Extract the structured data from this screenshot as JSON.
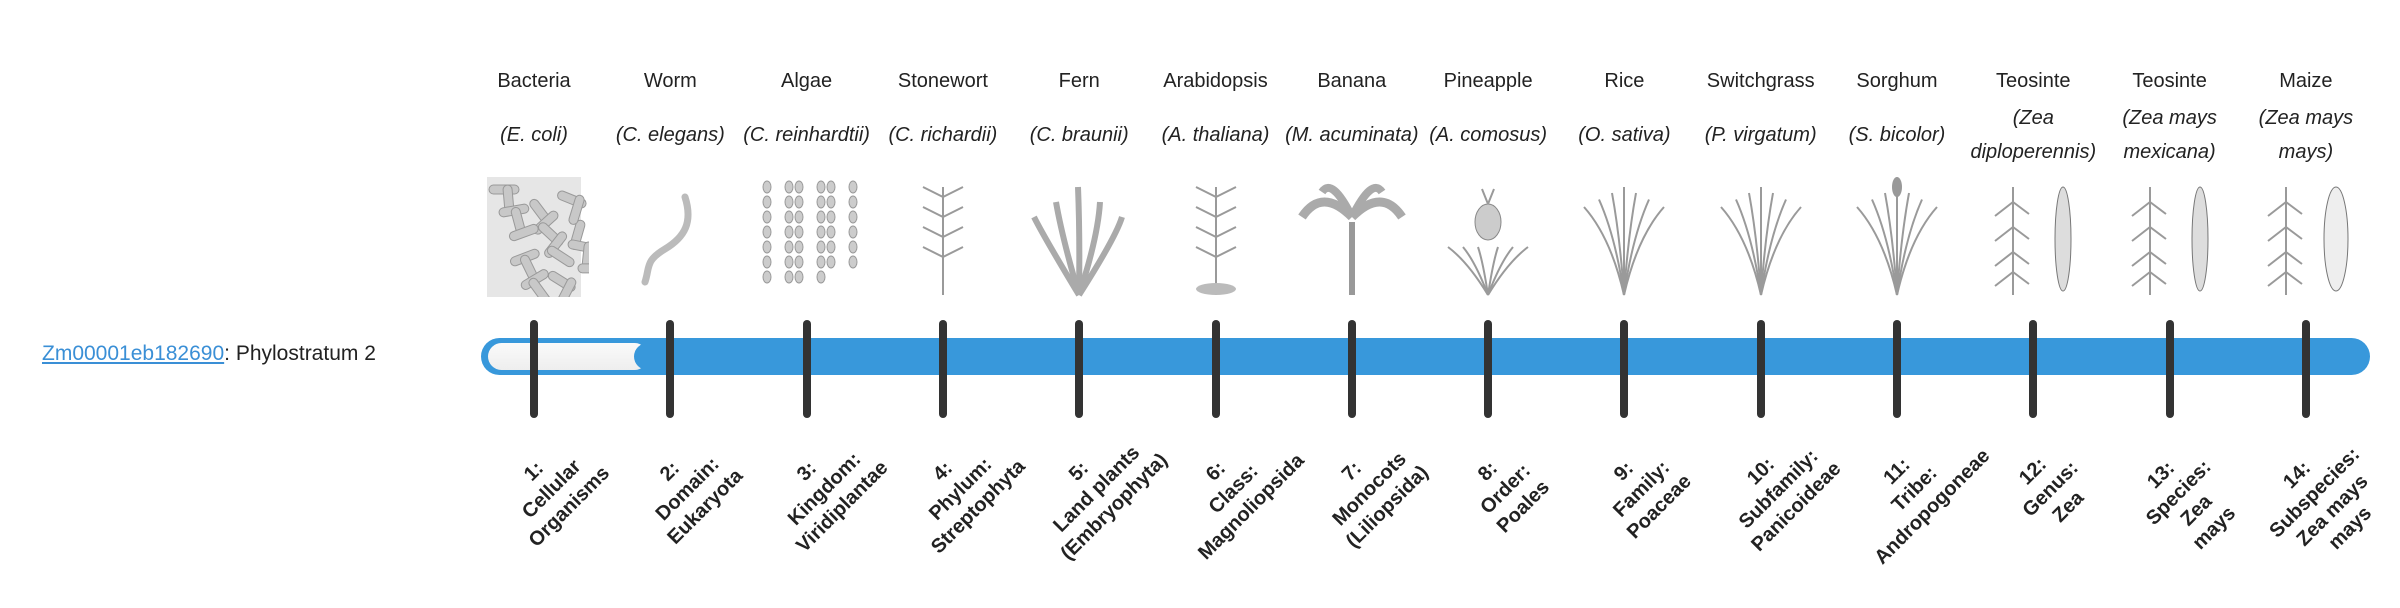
{
  "gene": {
    "id": "Zm00001eb182690",
    "suffix": ": Phylostratum 2",
    "phylostratum": 2
  },
  "colors": {
    "bar": "#3898db",
    "tick": "#333333",
    "link": "#3a8fd6"
  },
  "strata": [
    {
      "common": "Bacteria",
      "species": "(E. coli)",
      "icon": "bacteria-icon",
      "rank": [
        "1:",
        "Cellular",
        "Organisms"
      ]
    },
    {
      "common": "Worm",
      "species": "(C. elegans)",
      "icon": "worm-icon",
      "rank": [
        "2:",
        "Domain:",
        "Eukaryota"
      ]
    },
    {
      "common": "Algae",
      "species": "(C. reinhardtii)",
      "icon": "algae-icon",
      "rank": [
        "3:",
        "Kingdom:",
        "Viridiplantae"
      ]
    },
    {
      "common": "Stonewort",
      "species": "(C. richardii)",
      "icon": "stonewort-icon",
      "rank": [
        "4:",
        "Phylum:",
        "Streptophyta"
      ]
    },
    {
      "common": "Fern",
      "species": "(C. braunii)",
      "icon": "fern-icon",
      "rank": [
        "5:",
        "Land plants",
        "(Embryophyta)"
      ]
    },
    {
      "common": "Arabidopsis",
      "species": "(A. thaliana)",
      "icon": "arabidopsis-icon",
      "rank": [
        "6:",
        "Class:",
        "Magnoliopsida"
      ]
    },
    {
      "common": "Banana",
      "species": "(M. acuminata)",
      "icon": "banana-icon",
      "rank": [
        "7:",
        "Monocots",
        "(Liliopsida)"
      ]
    },
    {
      "common": "Pineapple",
      "species": "(A. comosus)",
      "icon": "pineapple-icon",
      "rank": [
        "8:",
        "Order:",
        "Poales"
      ]
    },
    {
      "common": "Rice",
      "species": "(O. sativa)",
      "icon": "rice-icon",
      "rank": [
        "9:",
        "Family:",
        "Poaceae"
      ]
    },
    {
      "common": "Switchgrass",
      "species": "(P. virgatum)",
      "icon": "switchgrass-icon",
      "rank": [
        "10:",
        "Subfamily:",
        "Panicoideae"
      ]
    },
    {
      "common": "Sorghum",
      "species": "(S. bicolor)",
      "icon": "sorghum-icon",
      "rank": [
        "11:",
        "Tribe:",
        "Andropogoneae"
      ]
    },
    {
      "common": "Teosinte",
      "species": "(Zea diploperennis)",
      "icon": "teosinte-icon",
      "rank": [
        "12:",
        "Genus:",
        "Zea"
      ]
    },
    {
      "common": "Teosinte",
      "species": "(Zea mays mexicana)",
      "icon": "teosinte-mexicana-icon",
      "rank": [
        "13:",
        "Species:",
        "Zea",
        "mays"
      ]
    },
    {
      "common": "Maize",
      "species": "(Zea mays mays)",
      "icon": "maize-icon",
      "rank": [
        "14:",
        "Subspecies:",
        "Zea mays",
        "mays"
      ]
    }
  ]
}
